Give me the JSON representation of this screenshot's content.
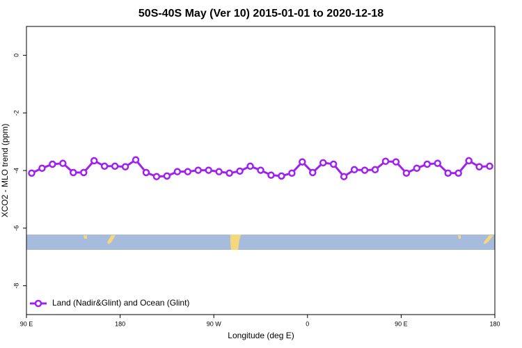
{
  "chart_data": {
    "type": "line",
    "title": "50S-40S May (Ver 10)   2015-01-01 to 2020-12-18",
    "x_label": "Longitude (deg E)",
    "y_label": "XCO2 - MLO trend (ppm)",
    "x": [
      95,
      105,
      115,
      125,
      135,
      145,
      155,
      165,
      175,
      185,
      195,
      205,
      215,
      225,
      235,
      245,
      255,
      265,
      275,
      285,
      295,
      305,
      315,
      325,
      335,
      345,
      355,
      365,
      375,
      385,
      395,
      405,
      415,
      425,
      435,
      445,
      455,
      465,
      475,
      485,
      495,
      505,
      515,
      525,
      535
    ],
    "series": [
      {
        "name": "Land (Nadir&Glint) and Ocean (Glint)",
        "color": "#a020f0",
        "values": [
          -4.09,
          -3.92,
          -3.78,
          -3.75,
          -4.07,
          -4.07,
          -3.66,
          -3.85,
          -3.85,
          -3.87,
          -3.63,
          -4.07,
          -4.21,
          -4.19,
          -4.04,
          -4.04,
          -3.99,
          -3.99,
          -4.04,
          -4.09,
          -4.02,
          -3.85,
          -3.99,
          -4.16,
          -4.19,
          -4.09,
          -3.7,
          -4.07,
          -3.73,
          -3.78,
          -4.21,
          -3.97,
          -3.99,
          -3.97,
          -3.68,
          -3.7,
          -4.09,
          -3.92,
          -3.78,
          -3.75,
          -4.09,
          -4.09,
          -3.66,
          -3.87,
          -3.85
        ]
      }
    ],
    "xlim": [
      90,
      540
    ],
    "xticks": [
      {
        "value": 90,
        "label": "90 E"
      },
      180,
      {
        "value": 270,
        "label": "90 W"
      },
      {
        "value": 360,
        "label": "0"
      },
      {
        "value": 450,
        "label": "90 E"
      },
      {
        "value": 540,
        "label": "180"
      }
    ],
    "ylim": [
      -9,
      1
    ],
    "yticks": [
      0,
      -2,
      -4,
      -6,
      -8
    ],
    "grid": false,
    "legend": "bottomleft"
  }
}
